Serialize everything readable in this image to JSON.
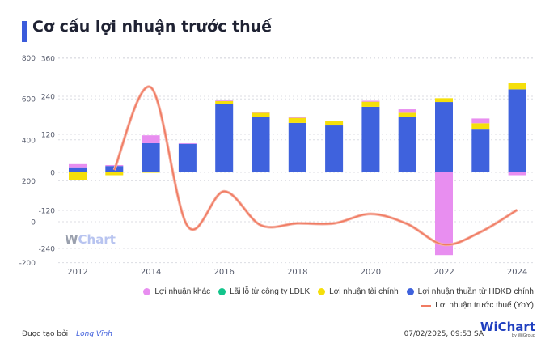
{
  "title": "Cơ cấu lợi nhuận trước thuế",
  "colors": {
    "accent": "#3b5bdb",
    "khac": "#e88ef0",
    "ldlk": "#12c48b",
    "taichinh": "#f5df0a",
    "hdkd": "#3f62dd",
    "yoy": "#f07b62"
  },
  "watermark": {
    "w": "W",
    "chart": "Chart"
  },
  "chart_data": {
    "type": "bar",
    "categories": [
      "2012",
      "2013",
      "2014",
      "2015",
      "2016",
      "2017",
      "2018",
      "2019",
      "2020",
      "2021",
      "2022",
      "2023",
      "2024"
    ],
    "x_tick_labels": [
      "2012",
      "2014",
      "2016",
      "2018",
      "2020",
      "2022",
      "2024"
    ],
    "left_axis": {
      "ticks": [
        "800",
        "600",
        "400",
        "200",
        "0",
        "-200"
      ],
      "range": [
        -200,
        800
      ]
    },
    "right_axis": {
      "ticks": [
        "360",
        "240",
        "120",
        "0",
        "-120",
        "-240"
      ],
      "range": [
        -280,
        360
      ]
    },
    "grid": true,
    "legend_placement": "bottom",
    "series": [
      {
        "name": "Lợi nhuận thuần từ HĐKD chính",
        "type": "bar",
        "axis": "inner",
        "values": [
          16,
          20,
          92,
          90,
          217,
          176,
          156,
          148,
          207,
          174,
          222,
          135,
          262
        ]
      },
      {
        "name": "Lợi nhuận tài chính",
        "type": "bar",
        "axis": "inner",
        "values": [
          -24,
          -9,
          -1,
          0,
          8,
          12,
          16,
          14,
          16,
          14,
          12,
          20,
          20
        ]
      },
      {
        "name": "Lãi lỗ từ công ty LDLK",
        "type": "bar",
        "axis": "inner",
        "values": [
          0,
          0,
          0,
          0,
          0,
          0,
          0,
          0,
          0,
          0,
          0,
          0,
          0
        ]
      },
      {
        "name": "Lợi nhuận khác",
        "type": "bar",
        "axis": "inner",
        "values": [
          10,
          3,
          25,
          2,
          2,
          3,
          3,
          0,
          3,
          11,
          -261,
          15,
          -9
        ]
      },
      {
        "name": "Lợi nhuận trước thuế (YoY)",
        "type": "line",
        "axis": "outer",
        "values": [
          null,
          253,
          656,
          -21,
          148,
          -17,
          -8,
          -8,
          38,
          -11,
          -112,
          -50,
          58
        ]
      }
    ]
  },
  "legend": [
    "Lợi nhuận khác",
    "Lãi lỗ từ công ty LDLK",
    "Lợi nhuận tài chính",
    "Lợi nhuận thuần từ HĐKD chính",
    "Lợi nhuận trước thuế (YoY)"
  ],
  "footer": {
    "created_by": "Được tạo bởi",
    "author": "Long Vĩnh",
    "timestamp": "07/02/2025, 09:53 SA",
    "logo": "WiChart",
    "logo_sub": "by WiGroup"
  }
}
